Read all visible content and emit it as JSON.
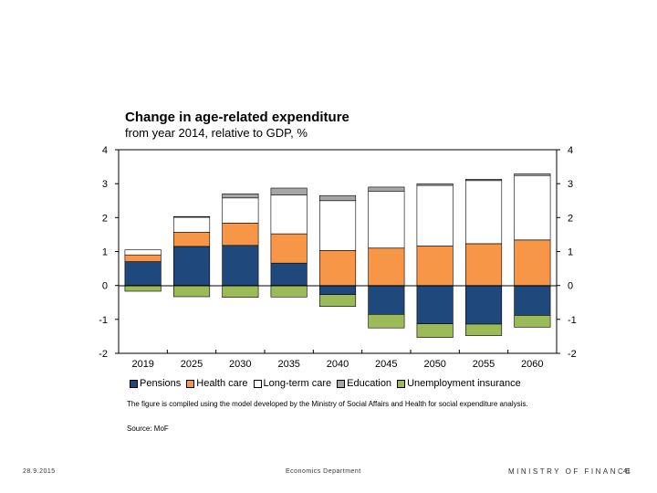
{
  "chart_data": {
    "type": "bar",
    "stacked": true,
    "title": "Change in age-related expenditure",
    "subtitle": "from year 2014, relative to GDP, %",
    "categories": [
      "2019",
      "2025",
      "2030",
      "2035",
      "2040",
      "2045",
      "2050",
      "2055",
      "2060"
    ],
    "series": [
      {
        "name": "Pensions",
        "color": "#1f497d",
        "values": [
          0.7,
          1.15,
          1.18,
          0.66,
          -0.27,
          -0.85,
          -1.13,
          -1.14,
          -0.88
        ]
      },
      {
        "name": "Health care",
        "color": "#f79646",
        "values": [
          0.2,
          0.42,
          0.66,
          0.86,
          1.03,
          1.1,
          1.16,
          1.23,
          1.34
        ]
      },
      {
        "name": "Long-term care",
        "color": "#ffffff",
        "values": [
          0.15,
          0.44,
          0.74,
          1.15,
          1.47,
          1.68,
          1.79,
          1.86,
          1.9
        ]
      },
      {
        "name": "Education",
        "color": "#a6a6a6",
        "values": [
          0.0,
          0.02,
          0.12,
          0.2,
          0.15,
          0.12,
          0.05,
          0.04,
          0.05
        ]
      },
      {
        "name": "Unemployment insurance",
        "color": "#9bbb59",
        "values": [
          -0.17,
          -0.33,
          -0.35,
          -0.34,
          -0.35,
          -0.4,
          -0.4,
          -0.34,
          -0.35
        ]
      }
    ],
    "ylim": [
      -2,
      4
    ],
    "yticks": [
      4,
      3,
      2,
      1,
      0,
      -1,
      -2
    ],
    "xlabel": "",
    "ylabel": "",
    "grid": false,
    "legend_position": "bottom"
  },
  "note": "The figure is compiled using the model developed by the Ministry of Social Affairs and Health for social expenditure analysis.",
  "source": "Source: MoF",
  "footer": {
    "date": "28.9.2015",
    "department": "Economics Department",
    "ministry": "MINISTRY OF FINANCE",
    "page": "41"
  }
}
